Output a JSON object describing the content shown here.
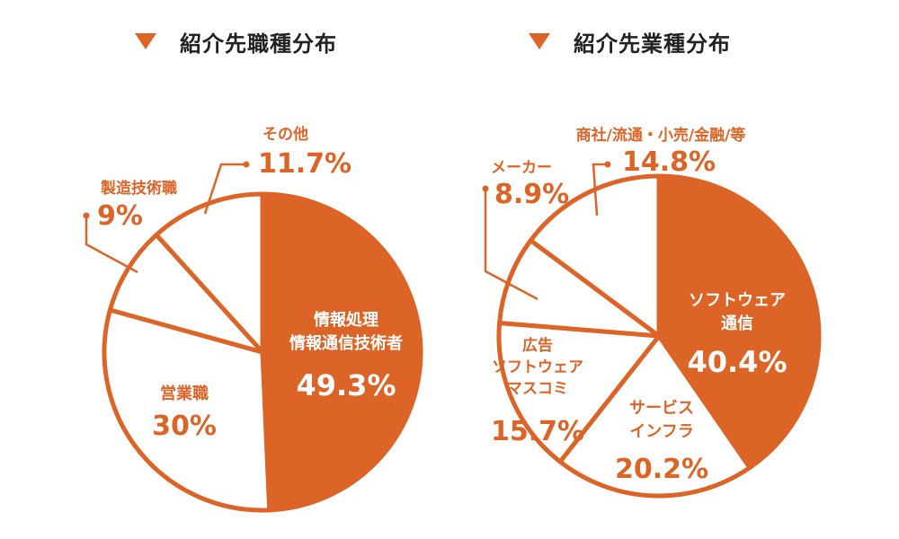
{
  "colors": {
    "accent": "#dc6426",
    "background": "#ffffff",
    "slice_fill": "#ffffff"
  },
  "icons": {
    "title_marker": "triangle-down-icon"
  },
  "chart_data": [
    {
      "type": "pie",
      "title": "紹介先職種分布",
      "slices": [
        {
          "lines": [
            "情報処理",
            "情報通信技術者"
          ],
          "value": 49.3,
          "value_label": "49.3%",
          "highlight": true
        },
        {
          "lines": [
            "営業職"
          ],
          "value": 30,
          "value_label": "30%",
          "highlight": false
        },
        {
          "lines": [
            "製造技術職"
          ],
          "value": 9,
          "value_label": "9%",
          "highlight": false
        },
        {
          "lines": [
            "その他"
          ],
          "value": 11.7,
          "value_label": "11.7%",
          "highlight": false
        }
      ]
    },
    {
      "type": "pie",
      "title": "紹介先業種分布",
      "slices": [
        {
          "lines": [
            "ソフトウェア",
            "通信"
          ],
          "value": 40.4,
          "value_label": "40.4%",
          "highlight": true
        },
        {
          "lines": [
            "サービス",
            "インフラ"
          ],
          "value": 20.2,
          "value_label": "20.2%",
          "highlight": false
        },
        {
          "lines": [
            "広告",
            "ソフトウェア",
            "マスコミ"
          ],
          "value": 15.7,
          "value_label": "15.7%",
          "highlight": false
        },
        {
          "lines": [
            "メーカー"
          ],
          "value": 8.9,
          "value_label": "8.9%",
          "highlight": false
        },
        {
          "lines": [
            "商社/流通・小売/金融/等"
          ],
          "value": 14.8,
          "value_label": "14.8%",
          "highlight": false
        }
      ]
    }
  ]
}
